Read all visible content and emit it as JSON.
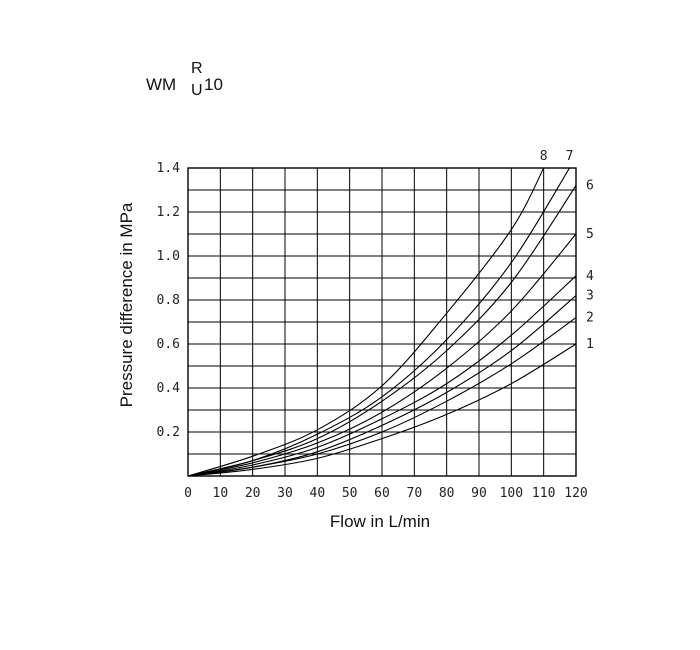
{
  "title": {
    "prefix": "WM",
    "superscript": "R",
    "subscript": "U",
    "suffix": "10"
  },
  "chart_data": {
    "type": "line",
    "xlabel": "Flow in L/min",
    "ylabel": "Pressure difference in MPa",
    "xlim": [
      0,
      120
    ],
    "ylim": [
      0,
      1.4
    ],
    "xticks": [
      "0",
      "10",
      "20",
      "30",
      "40",
      "50",
      "60",
      "70",
      "80",
      "90",
      "100",
      "110",
      "120"
    ],
    "yticks": [
      "0.2",
      "0.4",
      "0.6",
      "0.8",
      "1.0",
      "1.2",
      "1.4"
    ],
    "grid": true,
    "series": [
      {
        "name": "1",
        "x": [
          0,
          20,
          40,
          60,
          80,
          100,
          120
        ],
        "y": [
          0,
          0.03,
          0.08,
          0.17,
          0.28,
          0.42,
          0.6
        ]
      },
      {
        "name": "2",
        "x": [
          0,
          20,
          40,
          60,
          80,
          100,
          120
        ],
        "y": [
          0,
          0.04,
          0.1,
          0.2,
          0.34,
          0.51,
          0.72
        ]
      },
      {
        "name": "3",
        "x": [
          0,
          20,
          40,
          60,
          80,
          100,
          120
        ],
        "y": [
          0,
          0.04,
          0.11,
          0.23,
          0.38,
          0.57,
          0.82
        ]
      },
      {
        "name": "4",
        "x": [
          0,
          20,
          40,
          60,
          80,
          100,
          120
        ],
        "y": [
          0,
          0.05,
          0.13,
          0.26,
          0.42,
          0.64,
          0.91
        ]
      },
      {
        "name": "5",
        "x": [
          0,
          20,
          40,
          60,
          80,
          100,
          120
        ],
        "y": [
          0,
          0.06,
          0.15,
          0.29,
          0.49,
          0.75,
          1.1
        ]
      },
      {
        "name": "6",
        "x": [
          0,
          20,
          40,
          60,
          80,
          100,
          120
        ],
        "y": [
          0,
          0.07,
          0.17,
          0.34,
          0.57,
          0.88,
          1.32
        ]
      },
      {
        "name": "7",
        "x": [
          0,
          20,
          40,
          60,
          80,
          100,
          118
        ],
        "y": [
          0,
          0.07,
          0.19,
          0.36,
          0.62,
          0.97,
          1.4
        ]
      },
      {
        "name": "8",
        "x": [
          0,
          20,
          40,
          60,
          80,
          100,
          110
        ],
        "y": [
          0,
          0.09,
          0.21,
          0.41,
          0.74,
          1.12,
          1.4
        ]
      }
    ]
  }
}
